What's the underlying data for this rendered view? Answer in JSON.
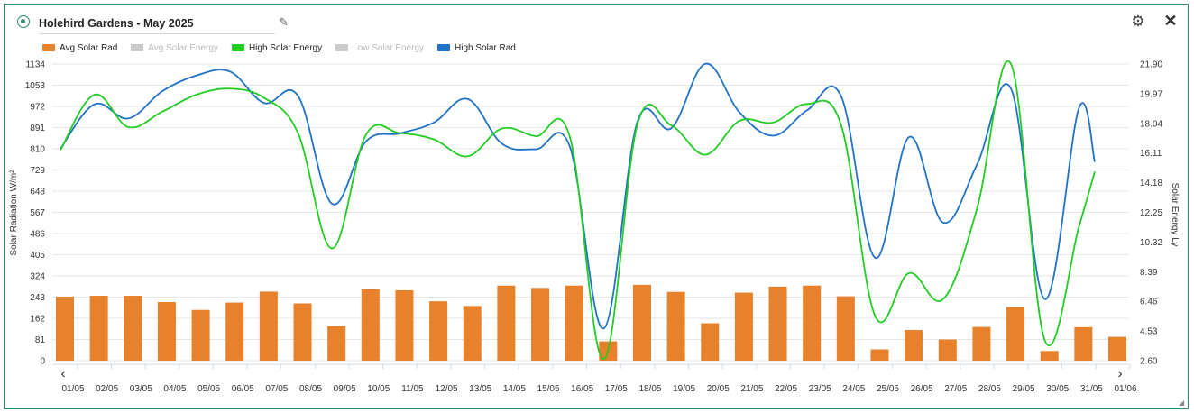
{
  "header": {
    "title": "Holehird Gardens - May 2025",
    "edit_icon": "pencil-icon",
    "settings_icon": "gear-icon",
    "close_icon": "close-icon"
  },
  "colors": {
    "avg_solar_rad": "#e8812b",
    "avg_solar_energy": "#cccccc",
    "high_solar_energy": "#22cc22",
    "low_solar_energy": "#cccccc",
    "high_solar_rad": "#1f72c4",
    "accent": "#2e8b6b"
  },
  "chart_data": {
    "type": "bar",
    "legend_placement": "top-left",
    "legend": [
      {
        "name": "Avg Solar Rad",
        "enabled": true,
        "color": "#e8812b"
      },
      {
        "name": "Avg Solar Energy",
        "enabled": false,
        "color": "#cccccc"
      },
      {
        "name": "High Solar Energy",
        "enabled": true,
        "color": "#22cc22"
      },
      {
        "name": "Low Solar Energy",
        "enabled": false,
        "color": "#cccccc"
      },
      {
        "name": "High Solar Rad",
        "enabled": true,
        "color": "#1f72c4"
      }
    ],
    "categories": [
      "01/05",
      "02/05",
      "03/05",
      "04/05",
      "05/05",
      "06/05",
      "07/05",
      "08/05",
      "09/05",
      "10/05",
      "11/05",
      "12/05",
      "13/05",
      "14/05",
      "15/05",
      "16/05",
      "17/05",
      "18/05",
      "19/05",
      "20/05",
      "21/05",
      "22/05",
      "23/05",
      "24/05",
      "25/05",
      "26/05",
      "27/05",
      "28/05",
      "29/05",
      "30/05",
      "31/05",
      "01/06"
    ],
    "ylabel_left": "Solar Radiation W/m²",
    "ylabel_right": "Solar Energy Ly",
    "left_ticks": [
      "1134",
      "1053",
      "972",
      "891",
      "810",
      "729",
      "648",
      "567",
      "486",
      "405",
      "324",
      "243",
      "162",
      "81",
      "0"
    ],
    "right_ticks": [
      "21.90",
      "19.97",
      "18.04",
      "16.11",
      "14.18",
      "12.25",
      "10.32",
      "8.39",
      "6.46",
      "4.53",
      "2.60"
    ],
    "ylim_left": [
      0,
      1134
    ],
    "ylim_right": [
      2.6,
      21.9
    ],
    "grid": true,
    "series": [
      {
        "name": "Avg Solar Rad",
        "type": "bar",
        "axis": "left",
        "values": [
          245,
          248,
          248,
          224,
          194,
          222,
          264,
          219,
          132,
          274,
          269,
          227,
          209,
          287,
          278,
          287,
          74,
          290,
          263,
          143,
          260,
          283,
          287,
          246,
          43,
          117,
          81,
          129,
          205,
          37,
          128,
          91
        ]
      },
      {
        "name": "High Solar Rad",
        "type": "line",
        "axis": "left",
        "values": [
          810,
          980,
          926,
          1030,
          1090,
          1105,
          985,
          1012,
          600,
          838,
          869,
          910,
          1000,
          830,
          808,
          820,
          123,
          915,
          889,
          1135,
          950,
          860,
          958,
          1010,
          393,
          855,
          528,
          750,
          1040,
          235,
          965,
          760
        ]
      },
      {
        "name": "High Solar Energy",
        "type": "line",
        "axis": "right",
        "values": [
          16.3,
          19.9,
          17.8,
          18.8,
          19.9,
          20.3,
          19.7,
          17.4,
          9.9,
          17.3,
          17.4,
          17.0,
          15.9,
          17.7,
          17.2,
          17.2,
          2.7,
          18.0,
          17.9,
          16.0,
          18.2,
          18.1,
          19.3,
          17.9,
          5.5,
          8.3,
          6.6,
          12.5,
          21.9,
          3.9,
          11.3,
          14.9
        ]
      }
    ]
  }
}
